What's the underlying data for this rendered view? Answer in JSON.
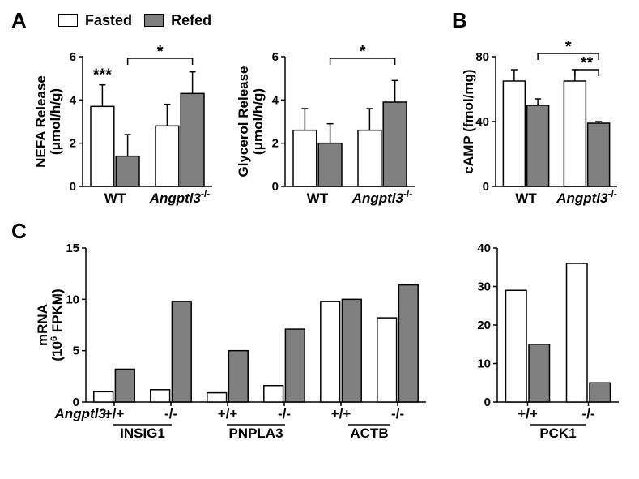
{
  "colors": {
    "fasted": "#ffffff",
    "refed": "#808080",
    "axis": "#000000",
    "background": "#ffffff"
  },
  "legend": {
    "fasted": "Fasted",
    "refed": "Refed"
  },
  "panel_labels": {
    "A": "A",
    "B": "B",
    "C": "C"
  },
  "charts": {
    "nefa": {
      "type": "bar",
      "ylabel_line1": "NEFA Release",
      "ylabel_line2": "(μmol/h/g)",
      "ylim": [
        0,
        6
      ],
      "ytick_step": 2,
      "groups": [
        "WT",
        "Angptl3"
      ],
      "group_suffix": "-/-",
      "values": [
        [
          3.7,
          1.4
        ],
        [
          2.8,
          4.3
        ]
      ],
      "errors": [
        [
          1.0,
          1.0
        ],
        [
          1.0,
          1.0
        ]
      ],
      "bar_width": 0.38,
      "sig_above_first": "***",
      "sig_bracket": {
        "from": 1,
        "to": 3,
        "label": "*"
      }
    },
    "glycerol": {
      "type": "bar",
      "ylabel_line1": "Glycerol Release",
      "ylabel_line2": "(μmol/h/g)",
      "ylim": [
        0,
        6
      ],
      "ytick_step": 2,
      "groups": [
        "WT",
        "Angptl3"
      ],
      "group_suffix": "-/-",
      "values": [
        [
          2.6,
          2.0
        ],
        [
          2.6,
          3.9
        ]
      ],
      "errors": [
        [
          1.0,
          0.9
        ],
        [
          1.0,
          1.0
        ]
      ],
      "sig_bracket": {
        "from": 1,
        "to": 3,
        "label": "*"
      }
    },
    "camp": {
      "type": "bar",
      "ylabel": "cAMP (fmol/mg)",
      "ylim": [
        0,
        80
      ],
      "ytick_step": 40,
      "groups": [
        "WT",
        "Angptl3"
      ],
      "group_suffix": "-/-",
      "values": [
        [
          65,
          50
        ],
        [
          65,
          39
        ]
      ],
      "errors": [
        [
          7,
          4
        ],
        [
          7,
          1
        ]
      ],
      "sig_bracket_top": {
        "from": 1,
        "to": 3,
        "label": "*"
      },
      "sig_bracket_inner": {
        "from": 2,
        "to": 3,
        "label": "**"
      }
    },
    "mrna_left": {
      "type": "bar",
      "ylabel_line1": "mRNA",
      "ylabel_line2_pre": "(10",
      "ylabel_line2_sup": "6",
      "ylabel_line2_post": " FPKM)",
      "ylim": [
        0,
        15
      ],
      "ytick_step": 5,
      "xlabel_prefix": "Angptl3:",
      "genotypes": [
        "+/+",
        "-/-",
        "+/+",
        "-/-",
        "+/+",
        "-/-"
      ],
      "genes": [
        "INSIG1",
        "PNPLA3",
        "ACTB"
      ],
      "values": [
        [
          1.0,
          3.2
        ],
        [
          1.2,
          9.8
        ],
        [
          0.9,
          5.0
        ],
        [
          1.6,
          7.1
        ],
        [
          9.8,
          10.0
        ],
        [
          8.2,
          11.4
        ]
      ]
    },
    "mrna_right": {
      "type": "bar",
      "ylim": [
        0,
        40
      ],
      "ytick_step": 10,
      "genotypes": [
        "+/+",
        "-/-"
      ],
      "gene": "PCK1",
      "values": [
        [
          29,
          15
        ],
        [
          36,
          5
        ]
      ]
    }
  }
}
